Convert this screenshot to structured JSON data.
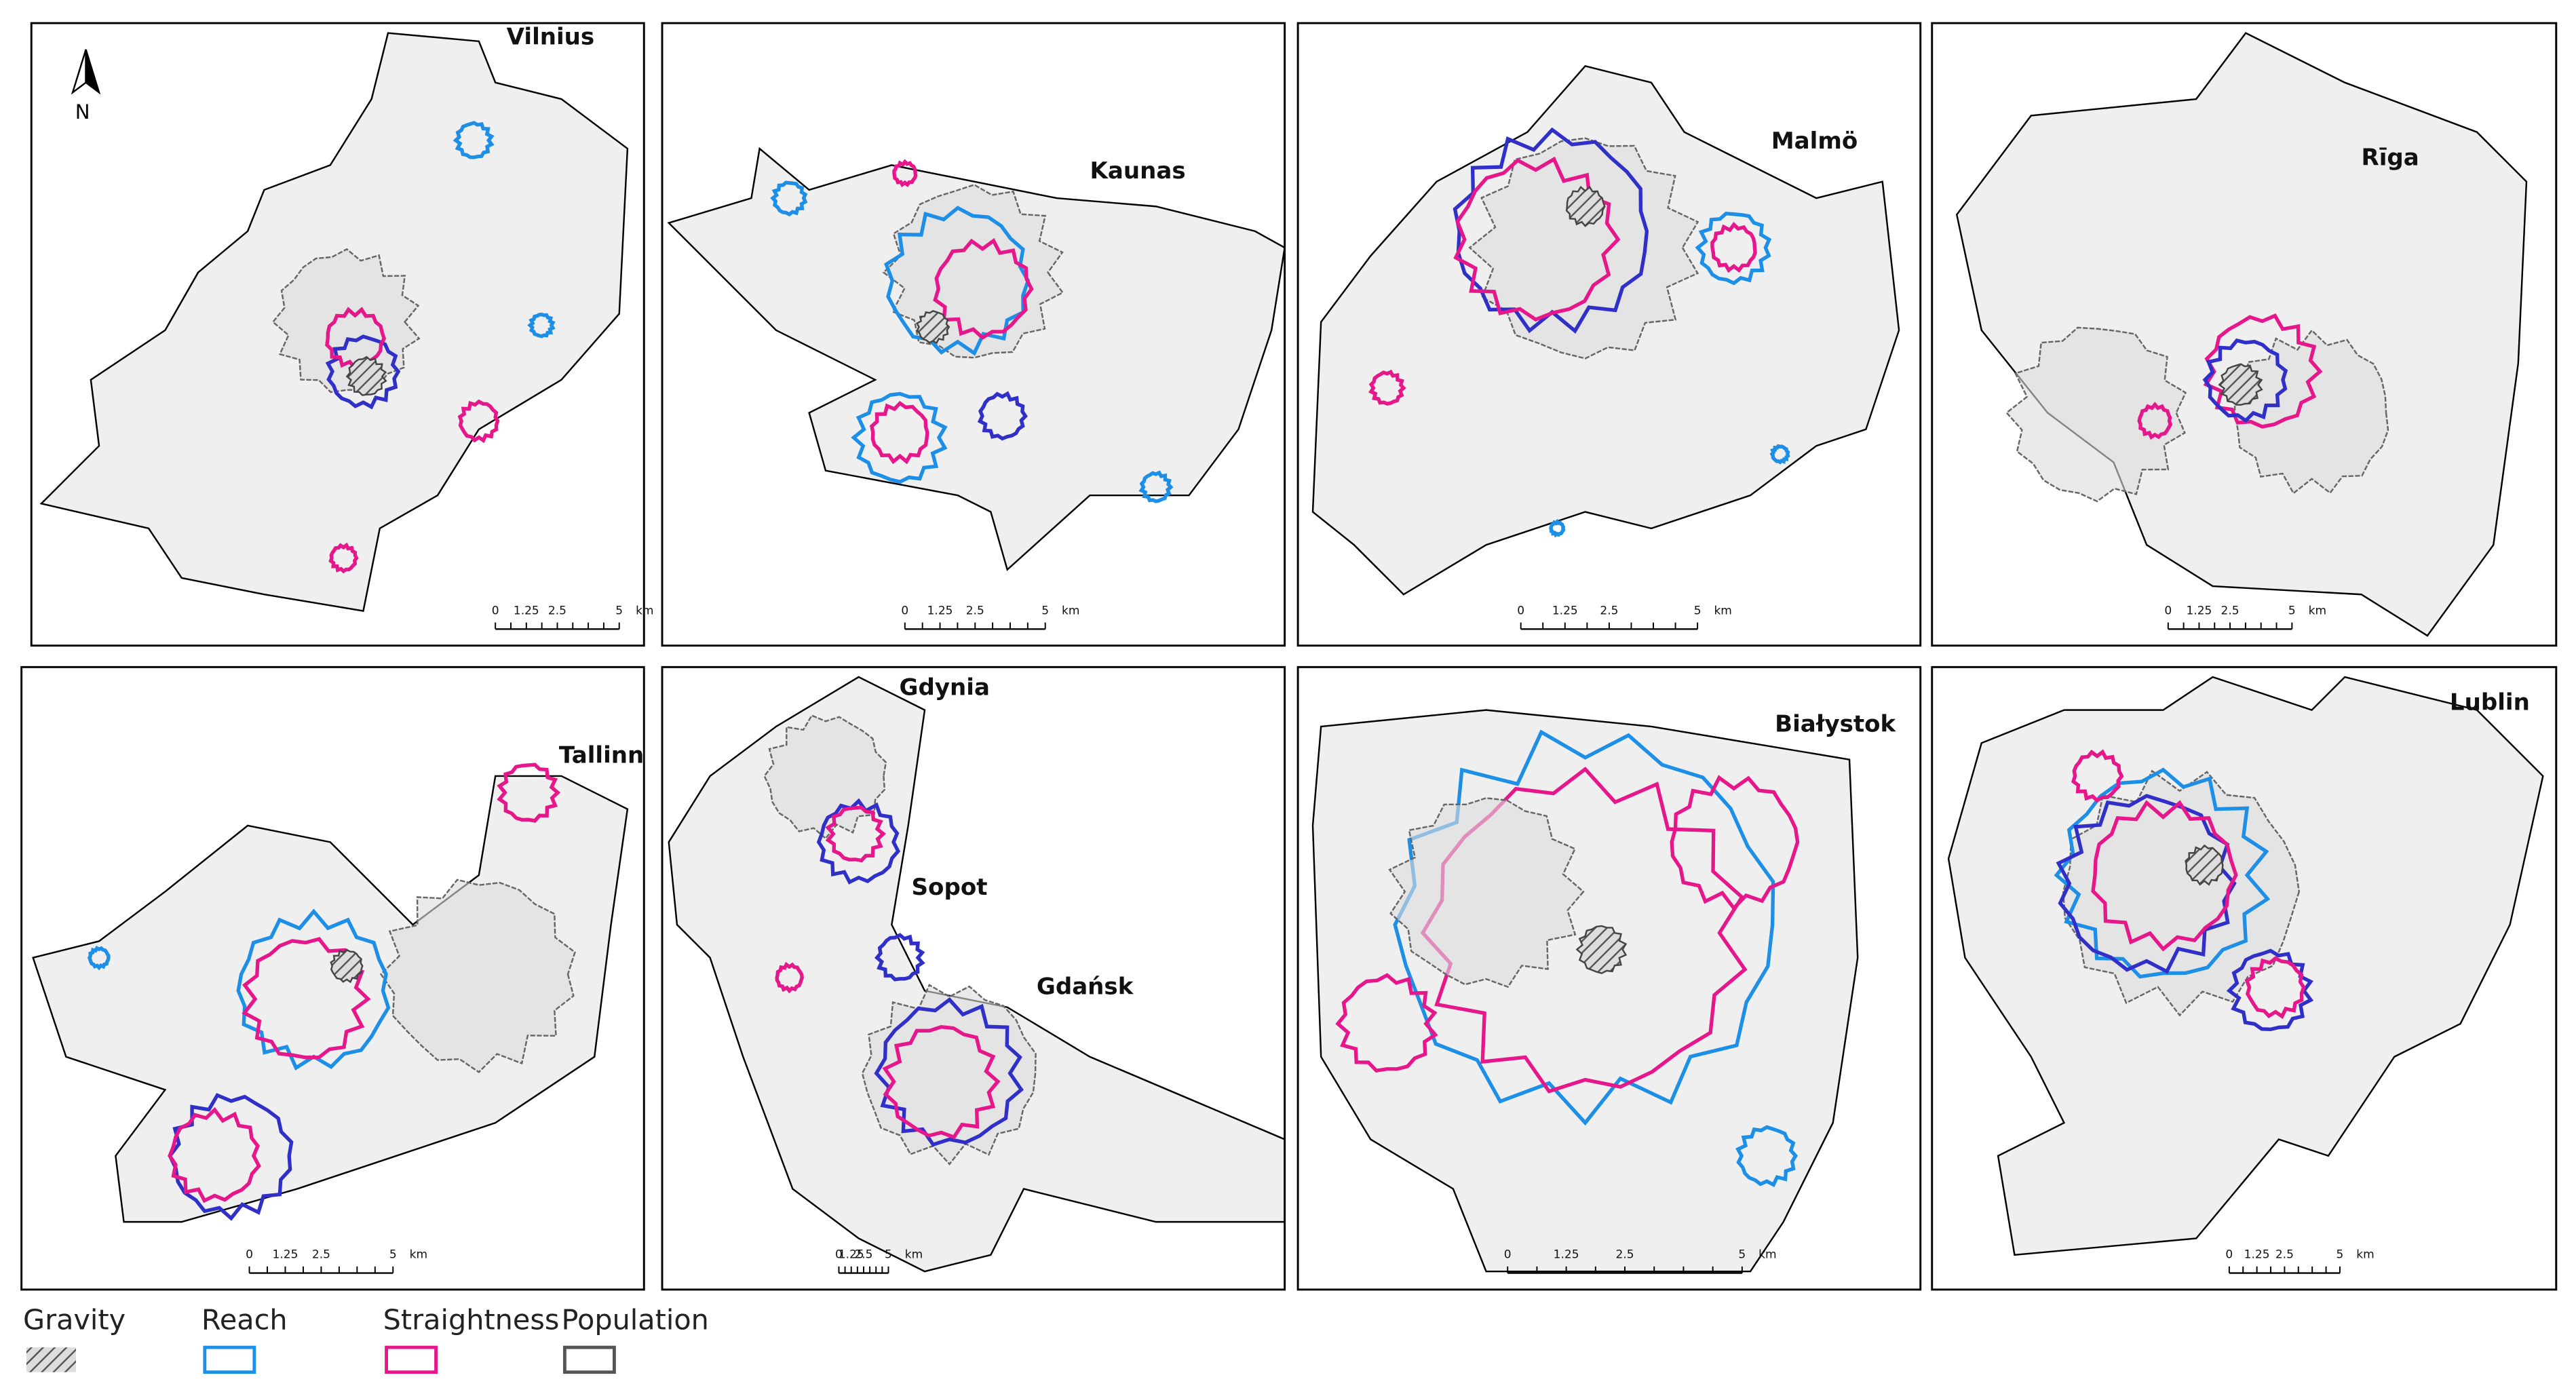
{
  "north_arrow": "N",
  "panels": [
    {
      "cities": [
        "Vilnius"
      ],
      "scale_labels": [
        "0",
        "1.25",
        "2.5",
        "5",
        "km"
      ]
    },
    {
      "cities": [
        "Kaunas"
      ],
      "scale_labels": [
        "0",
        "1.25",
        "2.5",
        "5",
        "km"
      ]
    },
    {
      "cities": [
        "Malmö"
      ],
      "scale_labels": [
        "0",
        "1.25",
        "2.5",
        "5",
        "km"
      ]
    },
    {
      "cities": [
        "Rīga"
      ],
      "scale_labels": [
        "0",
        "1.25",
        "2.5",
        "5",
        "km"
      ]
    },
    {
      "cities": [
        "Tallinn"
      ],
      "scale_labels": [
        "0",
        "1.25",
        "2.5",
        "5",
        "km"
      ]
    },
    {
      "cities": [
        "Gdynia",
        "Sopot",
        "Gdańsk"
      ],
      "scale_labels": [
        "0",
        "1.25",
        "2.5",
        "5",
        "km"
      ]
    },
    {
      "cities": [
        "Białystok"
      ],
      "scale_labels": [
        "0",
        "1.25",
        "2.5",
        "5",
        "km"
      ]
    },
    {
      "cities": [
        "Lublin"
      ],
      "scale_labels": [
        "0",
        "1.25",
        "2.5",
        "5",
        "km"
      ]
    }
  ],
  "legend": [
    "Gravity",
    "Reach",
    "Straightness",
    "Population"
  ]
}
